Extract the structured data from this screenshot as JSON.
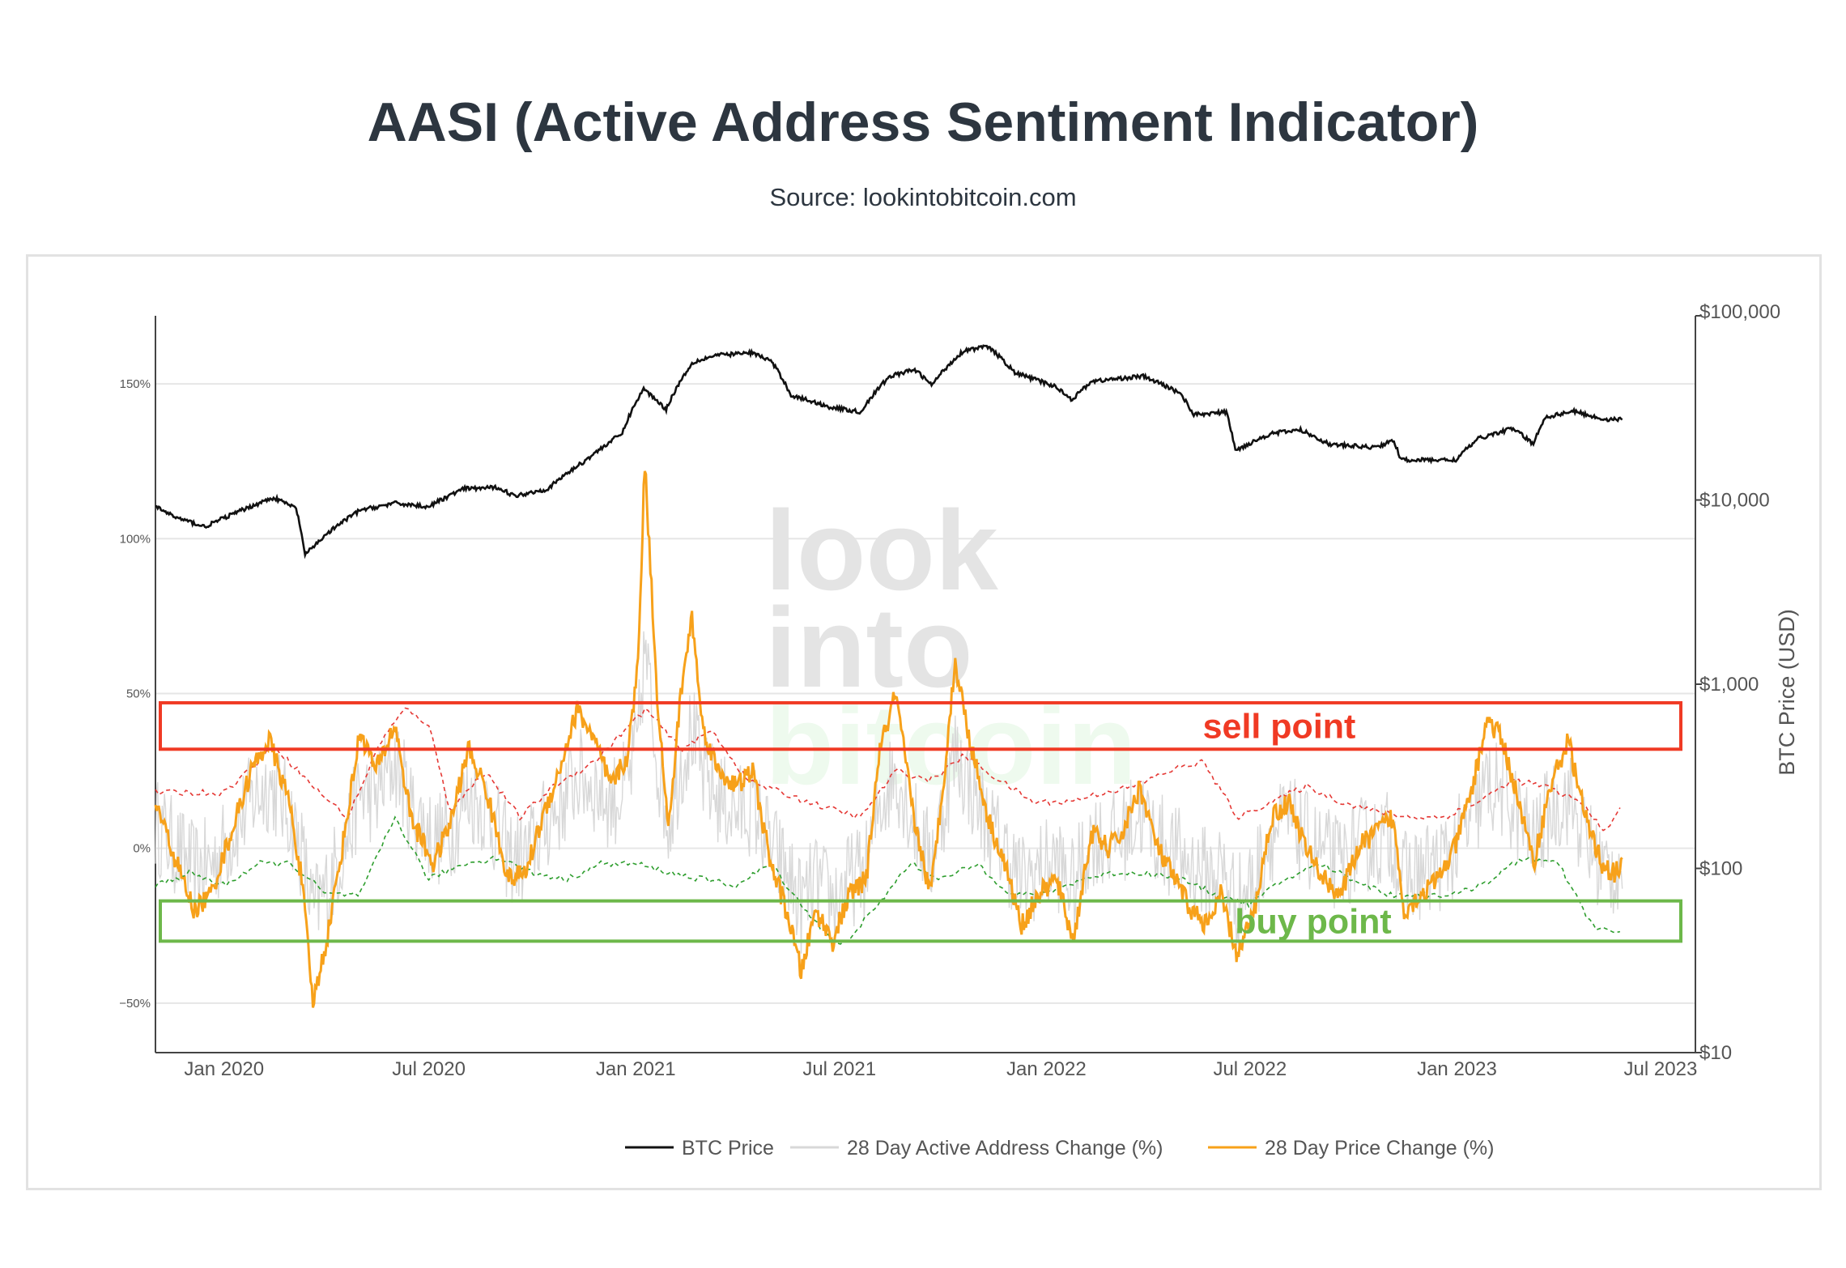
{
  "title": "AASI (Active Address Sentiment Indicator)",
  "subtitle": "Source: lookintobitcoin.com",
  "watermark": {
    "line1": "look",
    "line2": "into",
    "line3": "bitcoin"
  },
  "annotations": {
    "sell": "sell point",
    "buy": "buy point"
  },
  "colors": {
    "btc": "#111111",
    "address": "#d8d8d8",
    "price_change": "#f7a11a",
    "upper_band": "#e53935",
    "lower_band": "#2e9e2e",
    "sell_box": "#f03a24",
    "buy_box": "#6db84a",
    "grid": "#e6e6e6"
  },
  "chart_data": {
    "type": "line",
    "x_range": [
      "2019-11-01",
      "2023-08-01"
    ],
    "x_ticks": [
      {
        "date": "2020-01-01",
        "label": "Jan 2020"
      },
      {
        "date": "2020-07-01",
        "label": "Jul 2020"
      },
      {
        "date": "2021-01-01",
        "label": "Jan 2021"
      },
      {
        "date": "2021-07-01",
        "label": "Jul 2021"
      },
      {
        "date": "2022-01-01",
        "label": "Jan 2022"
      },
      {
        "date": "2022-07-01",
        "label": "Jul 2022"
      },
      {
        "date": "2023-01-01",
        "label": "Jan 2023"
      },
      {
        "date": "2023-07-01",
        "label": "Jul 2023"
      }
    ],
    "y_left": {
      "range": [
        -66,
        172
      ],
      "ticks": [
        -50,
        0,
        50,
        100,
        150
      ],
      "tick_labels": [
        "−50%",
        "0%",
        "50%",
        "100%",
        "150%"
      ]
    },
    "y_right": {
      "title": "BTC Price (USD)",
      "log": true,
      "range": [
        10,
        100000
      ],
      "ticks": [
        10,
        100,
        1000,
        10000,
        100000
      ],
      "tick_labels": [
        "$10",
        "$100",
        "$1,000",
        "$10,000",
        "$100,000"
      ]
    },
    "grid": true,
    "legend_position": "bottom-center",
    "series": [
      {
        "name": "BTC Price",
        "axis": "right",
        "color": "#111111",
        "points": [
          [
            "2019-11-01",
            9200
          ],
          [
            "2019-11-20",
            8000
          ],
          [
            "2019-12-15",
            7150
          ],
          [
            "2020-01-15",
            8700
          ],
          [
            "2020-02-14",
            10300
          ],
          [
            "2020-03-05",
            9000
          ],
          [
            "2020-03-13",
            5000
          ],
          [
            "2020-04-01",
            6500
          ],
          [
            "2020-05-01",
            8800
          ],
          [
            "2020-06-01",
            9600
          ],
          [
            "2020-07-01",
            9200
          ],
          [
            "2020-08-01",
            11500
          ],
          [
            "2020-09-01",
            11700
          ],
          [
            "2020-09-15",
            10500
          ],
          [
            "2020-10-15",
            11500
          ],
          [
            "2020-11-15",
            16000
          ],
          [
            "2020-12-01",
            19000
          ],
          [
            "2020-12-20",
            23000
          ],
          [
            "2021-01-08",
            40000
          ],
          [
            "2021-01-28",
            31000
          ],
          [
            "2021-02-21",
            56000
          ],
          [
            "2021-03-13",
            61000
          ],
          [
            "2021-04-14",
            63000
          ],
          [
            "2021-05-01",
            57000
          ],
          [
            "2021-05-19",
            37000
          ],
          [
            "2021-06-22",
            32000
          ],
          [
            "2021-07-20",
            30000
          ],
          [
            "2021-08-15",
            47000
          ],
          [
            "2021-09-06",
            51000
          ],
          [
            "2021-09-21",
            42000
          ],
          [
            "2021-10-20",
            65000
          ],
          [
            "2021-11-10",
            68000
          ],
          [
            "2021-12-04",
            49000
          ],
          [
            "2022-01-10",
            41000
          ],
          [
            "2022-01-24",
            35000
          ],
          [
            "2022-02-10",
            44000
          ],
          [
            "2022-03-28",
            47000
          ],
          [
            "2022-04-30",
            38000
          ],
          [
            "2022-05-12",
            29000
          ],
          [
            "2022-06-10",
            30000
          ],
          [
            "2022-06-18",
            18500
          ],
          [
            "2022-07-20",
            23000
          ],
          [
            "2022-08-15",
            24000
          ],
          [
            "2022-09-10",
            20000
          ],
          [
            "2022-10-20",
            19300
          ],
          [
            "2022-11-06",
            21000
          ],
          [
            "2022-11-12",
            16500
          ],
          [
            "2022-12-31",
            16500
          ],
          [
            "2023-01-20",
            21500
          ],
          [
            "2023-02-20",
            24500
          ],
          [
            "2023-03-10",
            20000
          ],
          [
            "2023-03-20",
            28000
          ],
          [
            "2023-04-14",
            30400
          ],
          [
            "2023-05-10",
            27500
          ],
          [
            "2023-05-28",
            27300
          ]
        ]
      },
      {
        "name": "28 Day Active Address Change (%)",
        "axis": "left",
        "color": "#d8d8d8",
        "sampled": true
      },
      {
        "name": "28 Day Price Change (%)",
        "axis": "left",
        "color": "#f7a11a",
        "points": [
          [
            "2019-11-01",
            15
          ],
          [
            "2019-11-20",
            -5
          ],
          [
            "2019-12-05",
            -20
          ],
          [
            "2019-12-20",
            -15
          ],
          [
            "2020-01-10",
            8
          ],
          [
            "2020-01-25",
            25
          ],
          [
            "2020-02-10",
            35
          ],
          [
            "2020-02-28",
            15
          ],
          [
            "2020-03-10",
            -10
          ],
          [
            "2020-03-20",
            -50
          ],
          [
            "2020-04-01",
            -30
          ],
          [
            "2020-04-15",
            0
          ],
          [
            "2020-05-01",
            38
          ],
          [
            "2020-05-15",
            25
          ],
          [
            "2020-06-01",
            40
          ],
          [
            "2020-06-15",
            10
          ],
          [
            "2020-07-05",
            -5
          ],
          [
            "2020-07-20",
            8
          ],
          [
            "2020-08-05",
            32
          ],
          [
            "2020-08-20",
            20
          ],
          [
            "2020-09-10",
            -10
          ],
          [
            "2020-09-25",
            -8
          ],
          [
            "2020-10-10",
            10
          ],
          [
            "2020-10-25",
            25
          ],
          [
            "2020-11-10",
            45
          ],
          [
            "2020-11-25",
            35
          ],
          [
            "2020-12-10",
            20
          ],
          [
            "2020-12-25",
            30
          ],
          [
            "2021-01-03",
            60
          ],
          [
            "2021-01-09",
            125
          ],
          [
            "2021-01-20",
            50
          ],
          [
            "2021-01-30",
            5
          ],
          [
            "2021-02-10",
            50
          ],
          [
            "2021-02-20",
            75
          ],
          [
            "2021-03-01",
            40
          ],
          [
            "2021-03-15",
            25
          ],
          [
            "2021-04-01",
            20
          ],
          [
            "2021-04-15",
            25
          ],
          [
            "2021-05-01",
            -5
          ],
          [
            "2021-05-15",
            -20
          ],
          [
            "2021-05-28",
            -40
          ],
          [
            "2021-06-10",
            -20
          ],
          [
            "2021-06-25",
            -30
          ],
          [
            "2021-07-10",
            -15
          ],
          [
            "2021-07-25",
            -10
          ],
          [
            "2021-08-05",
            30
          ],
          [
            "2021-08-20",
            50
          ],
          [
            "2021-09-05",
            10
          ],
          [
            "2021-09-20",
            -15
          ],
          [
            "2021-10-01",
            20
          ],
          [
            "2021-10-12",
            60
          ],
          [
            "2021-10-25",
            35
          ],
          [
            "2021-11-10",
            10
          ],
          [
            "2021-11-25",
            -5
          ],
          [
            "2021-12-10",
            -25
          ],
          [
            "2021-12-25",
            -15
          ],
          [
            "2022-01-10",
            -10
          ],
          [
            "2022-01-25",
            -30
          ],
          [
            "2022-02-10",
            5
          ],
          [
            "2022-02-25",
            0
          ],
          [
            "2022-03-10",
            5
          ],
          [
            "2022-03-25",
            20
          ],
          [
            "2022-04-10",
            0
          ],
          [
            "2022-04-25",
            -10
          ],
          [
            "2022-05-10",
            -20
          ],
          [
            "2022-05-25",
            -25
          ],
          [
            "2022-06-05",
            -15
          ],
          [
            "2022-06-20",
            -35
          ],
          [
            "2022-07-05",
            -20
          ],
          [
            "2022-07-20",
            10
          ],
          [
            "2022-08-05",
            15
          ],
          [
            "2022-08-20",
            0
          ],
          [
            "2022-09-05",
            -10
          ],
          [
            "2022-09-20",
            -15
          ],
          [
            "2022-10-05",
            0
          ],
          [
            "2022-10-20",
            5
          ],
          [
            "2022-11-05",
            10
          ],
          [
            "2022-11-15",
            -20
          ],
          [
            "2022-11-30",
            -15
          ],
          [
            "2022-12-15",
            -10
          ],
          [
            "2022-12-30",
            0
          ],
          [
            "2023-01-15",
            20
          ],
          [
            "2023-01-28",
            42
          ],
          [
            "2023-02-10",
            35
          ],
          [
            "2023-02-25",
            15
          ],
          [
            "2023-03-10",
            -5
          ],
          [
            "2023-03-25",
            20
          ],
          [
            "2023-04-10",
            35
          ],
          [
            "2023-04-25",
            10
          ],
          [
            "2023-05-10",
            -5
          ],
          [
            "2023-05-20",
            -8
          ],
          [
            "2023-05-28",
            -6
          ]
        ]
      },
      {
        "name": "upper band",
        "axis": "left",
        "color": "#e53935",
        "dash": true,
        "points": [
          [
            "2019-11-01",
            18
          ],
          [
            "2020-01-01",
            18
          ],
          [
            "2020-02-15",
            33
          ],
          [
            "2020-03-20",
            20
          ],
          [
            "2020-04-20",
            10
          ],
          [
            "2020-05-20",
            35
          ],
          [
            "2020-06-10",
            45
          ],
          [
            "2020-07-01",
            40
          ],
          [
            "2020-07-20",
            12
          ],
          [
            "2020-08-20",
            25
          ],
          [
            "2020-09-20",
            10
          ],
          [
            "2020-10-20",
            20
          ],
          [
            "2020-11-25",
            28
          ],
          [
            "2021-01-10",
            45
          ],
          [
            "2021-02-10",
            32
          ],
          [
            "2021-03-10",
            38
          ],
          [
            "2021-04-10",
            22
          ],
          [
            "2021-05-10",
            18
          ],
          [
            "2021-06-20",
            13
          ],
          [
            "2021-07-20",
            10
          ],
          [
            "2021-08-20",
            25
          ],
          [
            "2021-09-20",
            22
          ],
          [
            "2021-10-20",
            30
          ],
          [
            "2021-11-20",
            22
          ],
          [
            "2021-12-20",
            15
          ],
          [
            "2022-01-20",
            15
          ],
          [
            "2022-02-20",
            18
          ],
          [
            "2022-03-20",
            20
          ],
          [
            "2022-04-20",
            25
          ],
          [
            "2022-05-20",
            28
          ],
          [
            "2022-06-20",
            10
          ],
          [
            "2022-07-20",
            15
          ],
          [
            "2022-08-20",
            20
          ],
          [
            "2022-09-20",
            15
          ],
          [
            "2022-10-20",
            12
          ],
          [
            "2022-11-20",
            10
          ],
          [
            "2022-12-20",
            10
          ],
          [
            "2023-01-20",
            15
          ],
          [
            "2023-02-20",
            22
          ],
          [
            "2023-03-20",
            20
          ],
          [
            "2023-04-20",
            15
          ],
          [
            "2023-05-15",
            5
          ],
          [
            "2023-05-28",
            15
          ]
        ]
      },
      {
        "name": "lower band",
        "axis": "left",
        "color": "#2e9e2e",
        "dash": true,
        "points": [
          [
            "2019-11-01",
            -12
          ],
          [
            "2019-12-01",
            -8
          ],
          [
            "2020-01-01",
            -12
          ],
          [
            "2020-02-01",
            -5
          ],
          [
            "2020-03-01",
            -5
          ],
          [
            "2020-04-01",
            -15
          ],
          [
            "2020-05-01",
            -15
          ],
          [
            "2020-06-01",
            10
          ],
          [
            "2020-07-01",
            -10
          ],
          [
            "2020-08-01",
            -5
          ],
          [
            "2020-09-01",
            -3
          ],
          [
            "2020-10-01",
            -8
          ],
          [
            "2020-11-01",
            -10
          ],
          [
            "2020-12-01",
            -5
          ],
          [
            "2021-01-01",
            -5
          ],
          [
            "2021-02-01",
            -8
          ],
          [
            "2021-03-01",
            -10
          ],
          [
            "2021-04-01",
            -12
          ],
          [
            "2021-05-01",
            -5
          ],
          [
            "2021-06-01",
            -20
          ],
          [
            "2021-07-01",
            -32
          ],
          [
            "2021-08-01",
            -20
          ],
          [
            "2021-09-01",
            -5
          ],
          [
            "2021-10-01",
            -10
          ],
          [
            "2021-11-01",
            -5
          ],
          [
            "2021-12-01",
            -15
          ],
          [
            "2022-01-01",
            -15
          ],
          [
            "2022-02-01",
            -10
          ],
          [
            "2022-03-01",
            -8
          ],
          [
            "2022-04-01",
            -8
          ],
          [
            "2022-05-01",
            -10
          ],
          [
            "2022-06-01",
            -15
          ],
          [
            "2022-07-01",
            -18
          ],
          [
            "2022-08-01",
            -10
          ],
          [
            "2022-09-01",
            -5
          ],
          [
            "2022-10-01",
            -10
          ],
          [
            "2022-11-01",
            -15
          ],
          [
            "2022-12-01",
            -15
          ],
          [
            "2023-01-01",
            -15
          ],
          [
            "2023-02-01",
            -10
          ],
          [
            "2023-03-01",
            -3
          ],
          [
            "2023-04-01",
            -5
          ],
          [
            "2023-05-01",
            -25
          ],
          [
            "2023-05-28",
            -28
          ]
        ]
      }
    ],
    "zones": [
      {
        "label": "sell point",
        "y_range": [
          32,
          47
        ]
      },
      {
        "label": "buy point",
        "y_range": [
          -30,
          -17
        ]
      }
    ],
    "legend": [
      "BTC Price",
      "28 Day Active Address Change (%)",
      "28 Day Price Change (%)"
    ]
  }
}
